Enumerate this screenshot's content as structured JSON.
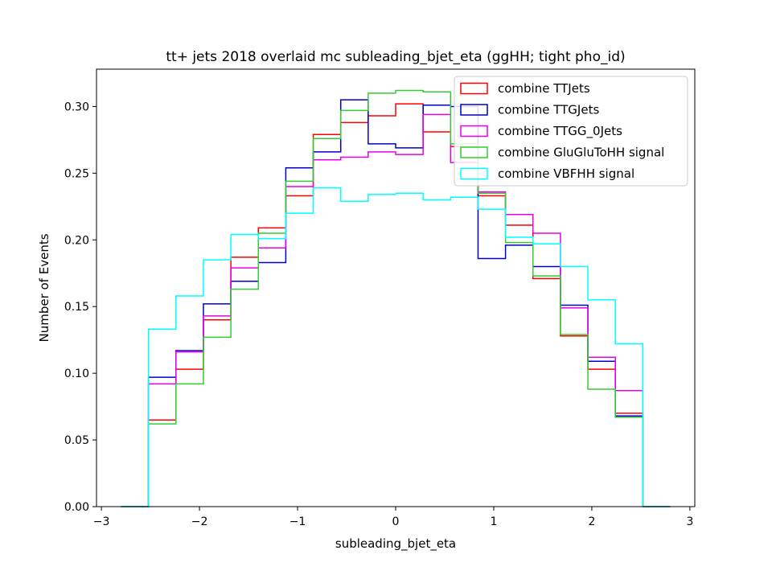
{
  "chart_data": {
    "type": "step-histogram",
    "title": "tt+ jets 2018 overlaid mc subleading_bjet_eta (ggHH; tight pho_id)",
    "xlabel": "subleading_bjet_eta",
    "ylabel": "Number of Events",
    "xlim": [
      -3.05,
      3.05
    ],
    "ylim": [
      0.0,
      0.328
    ],
    "grid": false,
    "legend_position": "top-right",
    "x_ticks": [
      -3,
      -2,
      -1,
      0,
      1,
      2,
      3
    ],
    "x_tick_labels": [
      "−3",
      "−2",
      "−1",
      "0",
      "1",
      "2",
      "3"
    ],
    "y_ticks": [
      0.0,
      0.05,
      0.1,
      0.15,
      0.2,
      0.25,
      0.3
    ],
    "y_tick_labels": [
      "0.00",
      "0.05",
      "0.10",
      "0.15",
      "0.20",
      "0.25",
      "0.30"
    ],
    "bin_edges": [
      -2.8,
      -2.52,
      -2.24,
      -1.96,
      -1.68,
      -1.4,
      -1.12,
      -0.84,
      -0.56,
      -0.28,
      0.0,
      0.28,
      0.56,
      0.84,
      1.12,
      1.4,
      1.68,
      1.96,
      2.24,
      2.52,
      2.8
    ],
    "series": [
      {
        "name": "combine TTJets",
        "color": "#ff0000",
        "values": [
          0.0,
          0.065,
          0.103,
          0.14,
          0.187,
          0.209,
          0.233,
          0.279,
          0.288,
          0.293,
          0.302,
          0.281,
          0.27,
          0.233,
          0.211,
          0.171,
          0.128,
          0.103,
          0.07,
          0.0
        ]
      },
      {
        "name": "combine TTGJets",
        "color": "#0000cc",
        "values": [
          0.0,
          0.097,
          0.117,
          0.152,
          0.169,
          0.183,
          0.254,
          0.266,
          0.305,
          0.272,
          0.269,
          0.301,
          0.3,
          0.186,
          0.196,
          0.18,
          0.151,
          0.109,
          0.068,
          0.0
        ]
      },
      {
        "name": "combine TTGG_0Jets",
        "color": "#e800e8",
        "values": [
          0.0,
          0.092,
          0.116,
          0.143,
          0.179,
          0.194,
          0.24,
          0.26,
          0.262,
          0.266,
          0.264,
          0.294,
          0.258,
          0.236,
          0.219,
          0.205,
          0.149,
          0.112,
          0.087,
          0.0
        ]
      },
      {
        "name": "combine GluGluToHH signal",
        "color": "#33cc33",
        "values": [
          0.0,
          0.062,
          0.092,
          0.127,
          0.163,
          0.205,
          0.244,
          0.276,
          0.297,
          0.31,
          0.312,
          0.311,
          0.272,
          0.235,
          0.198,
          0.173,
          0.129,
          0.088,
          0.067,
          0.0
        ]
      },
      {
        "name": "combine VBFHH signal",
        "color": "#00ffff",
        "values": [
          0.0,
          0.133,
          0.158,
          0.185,
          0.204,
          0.201,
          0.22,
          0.239,
          0.229,
          0.234,
          0.235,
          0.23,
          0.232,
          0.223,
          0.202,
          0.197,
          0.18,
          0.155,
          0.122,
          0.0
        ]
      }
    ]
  }
}
